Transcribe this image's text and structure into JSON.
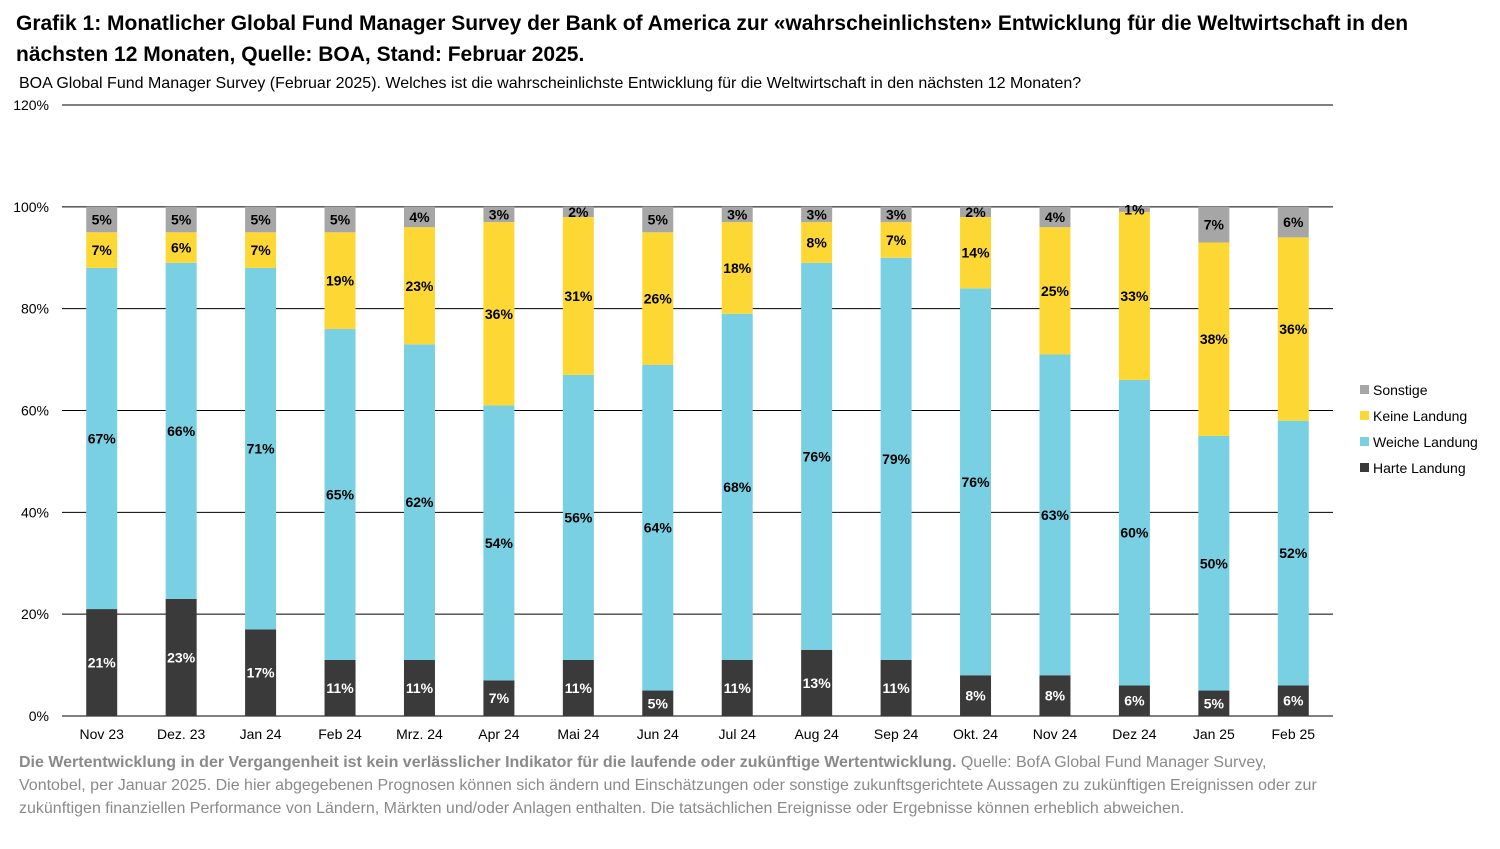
{
  "title": "Grafik 1: Monatlicher Global Fund Manager Survey der Bank of America zur «wahrscheinlichsten» Entwicklung für die Weltwirtschaft in den nächsten 12 Monaten, Quelle: BOA, Stand: Februar 2025.",
  "footnote_bold": "Die Wertentwicklung in der Vergangenheit ist kein verlässlicher Indikator für die laufende oder zukünftige Wertentwicklung.",
  "footnote_text": " Quelle: BofA Global Fund Manager Survey, Vontobel, per Januar 2025. Die hier abgegebenen Prognosen können sich ändern und Einschätzungen oder sonstige zukunftsgerichtete Aussagen zu zukünftigen Ereignissen oder zur zukünftigen finanziellen Performance von Ländern, Märkten und/oder Anlagen enthalten. Die tatsächlichen Ereignisse oder Ergebnisse können erheblich abweichen.",
  "chart_data": {
    "type": "bar",
    "stacked": true,
    "title": "BOA Global Fund Manager Survey (Februar 2025). Welches ist die wahrscheinlichste Entwicklung für die Weltwirtschaft in den nächsten 12 Monaten?",
    "categories": [
      "Nov 23",
      "Dez. 23",
      "Jan 24",
      "Feb 24",
      "Mrz. 24",
      "Apr 24",
      "Mai 24",
      "Jun 24",
      "Jul 24",
      "Aug 24",
      "Sep 24",
      "Okt. 24",
      "Nov 24",
      "Dez 24",
      "Jan 25",
      "Feb 25"
    ],
    "series": [
      {
        "name": "Harte Landung",
        "color": "#3a3a3a",
        "label_color": "#ffffff",
        "values": [
          21,
          23,
          17,
          11,
          11,
          7,
          11,
          5,
          11,
          13,
          11,
          8,
          8,
          6,
          5,
          6
        ]
      },
      {
        "name": "Weiche Landung",
        "color": "#78d0e2",
        "label_color": "#000000",
        "values": [
          67,
          66,
          71,
          65,
          62,
          54,
          56,
          64,
          68,
          76,
          79,
          76,
          63,
          60,
          50,
          52
        ]
      },
      {
        "name": "Keine Landung",
        "color": "#fdd835",
        "label_color": "#000000",
        "values": [
          7,
          6,
          7,
          19,
          23,
          36,
          31,
          26,
          18,
          8,
          7,
          14,
          25,
          33,
          38,
          36
        ]
      },
      {
        "name": "Sonstige",
        "color": "#a6a6a6",
        "label_color": "#000000",
        "values": [
          5,
          5,
          5,
          5,
          4,
          3,
          2,
          5,
          3,
          3,
          3,
          2,
          4,
          1,
          7,
          6
        ]
      }
    ],
    "ylim": [
      0,
      120
    ],
    "yticks": [
      0,
      20,
      40,
      60,
      80,
      100,
      120
    ],
    "ytick_suffix": "%",
    "grid": true,
    "legend_position": "right"
  }
}
